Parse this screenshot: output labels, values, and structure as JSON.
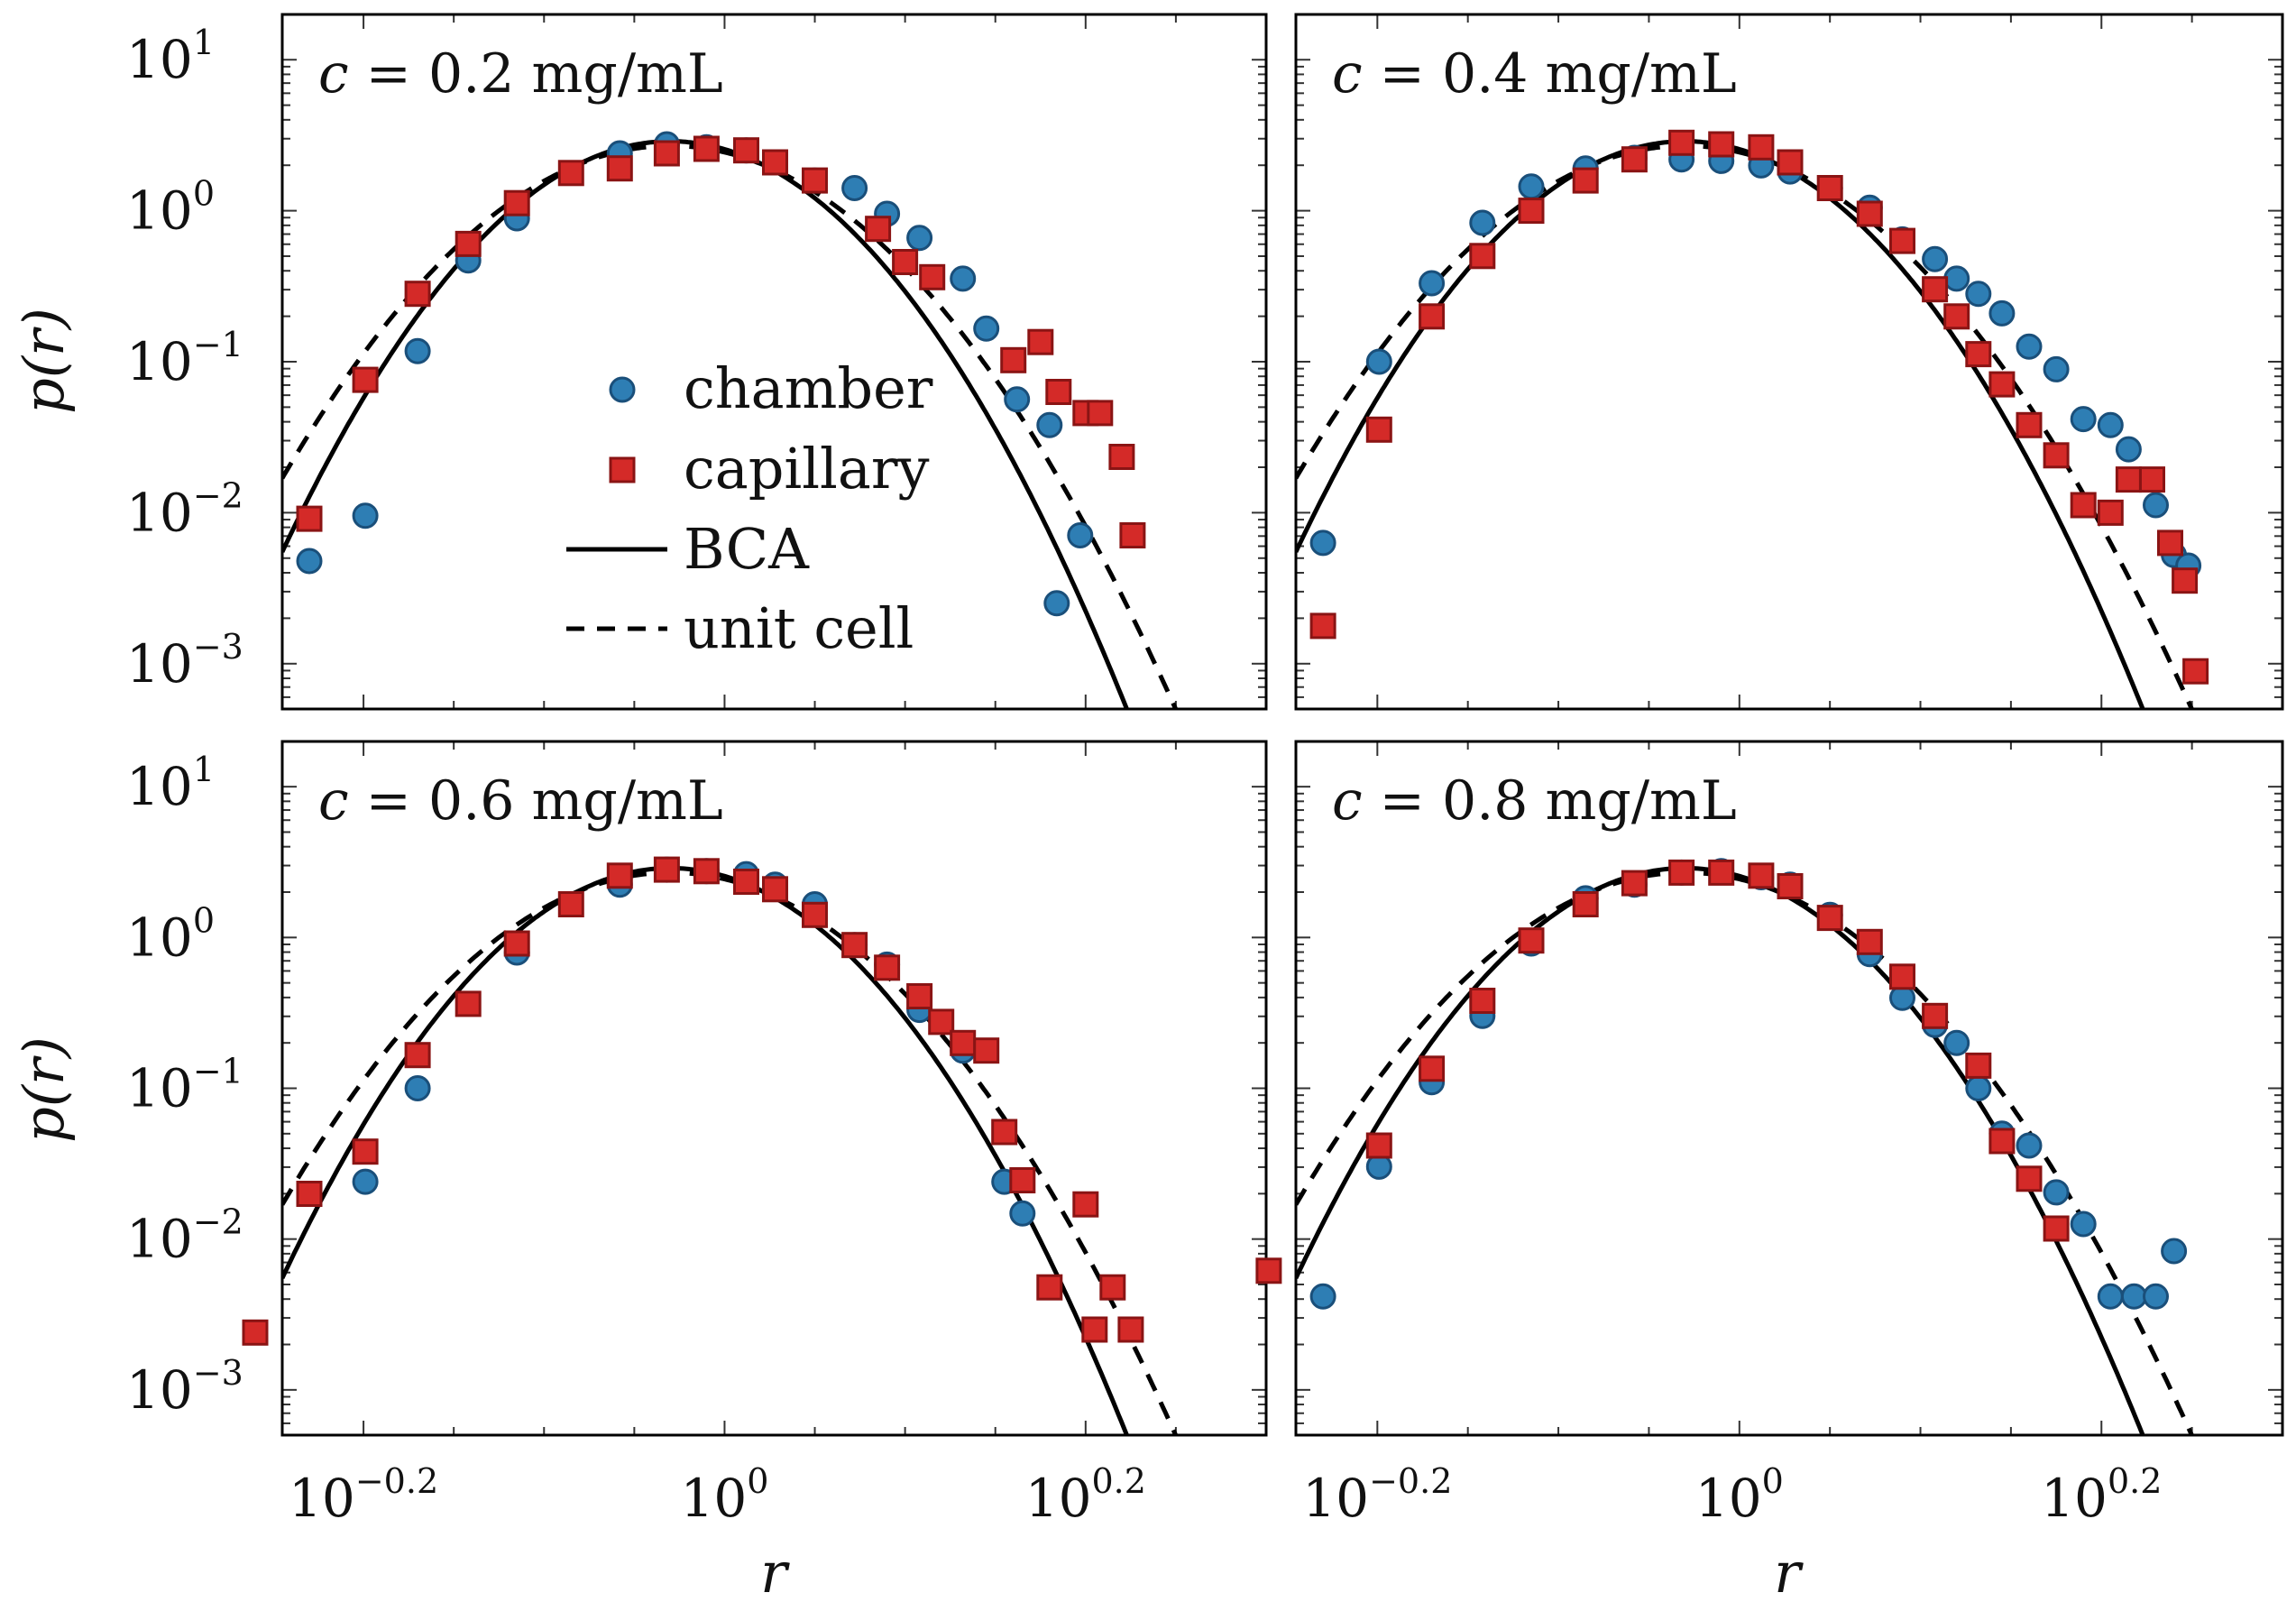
{
  "figure": {
    "x_axis_label": "r",
    "y_axis_label": "p(r)",
    "legend": [
      {
        "label": "chamber",
        "marker": "circle"
      },
      {
        "label": "capillary",
        "marker": "square"
      },
      {
        "label": "BCA",
        "marker": "solid-line"
      },
      {
        "label": "unit cell",
        "marker": "dashed-line"
      }
    ],
    "x_tick_labels": [
      {
        "value": -0.2,
        "base": "10",
        "exp": "−0.2"
      },
      {
        "value": 0,
        "base": "10",
        "exp": "0"
      },
      {
        "value": 0.2,
        "base": "10",
        "exp": "0.2"
      }
    ],
    "y_tick_labels": [
      {
        "value": 1,
        "base": "10",
        "exp": "1"
      },
      {
        "value": 0,
        "base": "10",
        "exp": "0"
      },
      {
        "value": -1,
        "base": "10",
        "exp": "−1"
      },
      {
        "value": -2,
        "base": "10",
        "exp": "−2"
      },
      {
        "value": -3,
        "base": "10",
        "exp": "−3"
      }
    ],
    "colors": {
      "chamber": "#2e7eb4",
      "chamber_edge": "#1a4f7a",
      "capillary": "#d42a28",
      "capillary_edge": "#8a1414",
      "curve": "#000000"
    }
  },
  "chart_data": [
    {
      "type": "scatter",
      "title": "c = 0.2 mg/mL",
      "title_c": "c",
      "title_rest": " = 0.2 mg/mL",
      "xlabel": "r",
      "ylabel": "p(r)",
      "xscale": "log",
      "yscale": "log",
      "xlim_log10": [
        -0.245,
        0.3
      ],
      "ylim_log10": [
        -3.3,
        1.3
      ],
      "series": [
        {
          "name": "chamber",
          "points": [
            [
              -0.23,
              -2.32
            ],
            [
              -0.199,
              -2.02
            ],
            [
              -0.17,
              -0.93
            ],
            [
              -0.142,
              -0.33
            ],
            [
              -0.115,
              -0.05
            ],
            [
              -0.058,
              0.38
            ],
            [
              -0.032,
              0.44
            ],
            [
              -0.01,
              0.42
            ],
            [
              0.012,
              0.4
            ],
            [
              0.05,
              0.2
            ],
            [
              0.072,
              0.15
            ],
            [
              0.09,
              -0.02
            ],
            [
              0.108,
              -0.18
            ],
            [
              0.132,
              -0.45
            ],
            [
              0.145,
              -0.78
            ],
            [
              0.162,
              -1.25
            ],
            [
              0.18,
              -1.42
            ],
            [
              0.184,
              -2.6
            ],
            [
              0.197,
              -2.15
            ]
          ]
        },
        {
          "name": "capillary",
          "points": [
            [
              -0.23,
              -2.04
            ],
            [
              -0.199,
              -1.12
            ],
            [
              -0.17,
              -0.55
            ],
            [
              -0.142,
              -0.22
            ],
            [
              -0.115,
              0.05
            ],
            [
              -0.085,
              0.25
            ],
            [
              -0.058,
              0.28
            ],
            [
              -0.032,
              0.38
            ],
            [
              -0.01,
              0.41
            ],
            [
              0.012,
              0.4
            ],
            [
              0.028,
              0.32
            ],
            [
              0.05,
              0.2
            ],
            [
              0.085,
              -0.12
            ],
            [
              0.1,
              -0.34
            ],
            [
              0.115,
              -0.44
            ],
            [
              0.16,
              -0.99
            ],
            [
              0.175,
              -0.87
            ],
            [
              0.185,
              -1.2
            ],
            [
              0.2,
              -1.34
            ],
            [
              0.208,
              -1.34
            ],
            [
              0.22,
              -1.63
            ],
            [
              0.226,
              -2.15
            ]
          ]
        }
      ]
    },
    {
      "type": "scatter",
      "title": "c = 0.4 mg/mL",
      "title_c": "c",
      "title_rest": " = 0.4 mg/mL",
      "xlabel": "r",
      "ylabel": "p(r)",
      "xscale": "log",
      "yscale": "log",
      "xlim_log10": [
        -0.245,
        0.3
      ],
      "ylim_log10": [
        -3.3,
        1.3
      ],
      "series": [
        {
          "name": "chamber",
          "points": [
            [
              -0.23,
              -2.2
            ],
            [
              -0.199,
              -1.0
            ],
            [
              -0.17,
              -0.48
            ],
            [
              -0.142,
              -0.08
            ],
            [
              -0.115,
              0.16
            ],
            [
              -0.085,
              0.28
            ],
            [
              -0.058,
              0.35
            ],
            [
              -0.032,
              0.34
            ],
            [
              -0.01,
              0.33
            ],
            [
              0.012,
              0.3
            ],
            [
              0.028,
              0.26
            ],
            [
              0.05,
              0.15
            ],
            [
              0.072,
              0.02
            ],
            [
              0.09,
              -0.19
            ],
            [
              0.108,
              -0.32
            ],
            [
              0.12,
              -0.45
            ],
            [
              0.132,
              -0.55
            ],
            [
              0.145,
              -0.68
            ],
            [
              0.16,
              -0.9
            ],
            [
              0.175,
              -1.05
            ],
            [
              0.19,
              -1.38
            ],
            [
              0.205,
              -1.42
            ],
            [
              0.215,
              -1.58
            ],
            [
              0.23,
              -1.95
            ],
            [
              0.24,
              -2.28
            ],
            [
              0.248,
              -2.35
            ]
          ]
        },
        {
          "name": "capillary",
          "points": [
            [
              -0.23,
              -2.75
            ],
            [
              -0.199,
              -1.45
            ],
            [
              -0.17,
              -0.7
            ],
            [
              -0.142,
              -0.3
            ],
            [
              -0.115,
              0.0
            ],
            [
              -0.085,
              0.2
            ],
            [
              -0.058,
              0.34
            ],
            [
              -0.032,
              0.45
            ],
            [
              -0.01,
              0.44
            ],
            [
              0.012,
              0.42
            ],
            [
              0.028,
              0.32
            ],
            [
              0.05,
              0.15
            ],
            [
              0.072,
              -0.02
            ],
            [
              0.09,
              -0.2
            ],
            [
              0.108,
              -0.52
            ],
            [
              0.12,
              -0.7
            ],
            [
              0.132,
              -0.95
            ],
            [
              0.145,
              -1.15
            ],
            [
              0.16,
              -1.42
            ],
            [
              0.175,
              -1.62
            ],
            [
              0.19,
              -1.95
            ],
            [
              0.205,
              -2.0
            ],
            [
              0.215,
              -1.78
            ],
            [
              0.228,
              -1.78
            ],
            [
              0.238,
              -2.2
            ],
            [
              0.246,
              -2.45
            ],
            [
              0.252,
              -3.05
            ]
          ]
        }
      ]
    },
    {
      "type": "scatter",
      "title": "c = 0.6 mg/mL",
      "title_c": "c",
      "title_rest": " = 0.6 mg/mL",
      "xlabel": "r",
      "ylabel": "p(r)",
      "xscale": "log",
      "yscale": "log",
      "xlim_log10": [
        -0.245,
        0.3
      ],
      "ylim_log10": [
        -3.3,
        1.3
      ],
      "series": [
        {
          "name": "chamber",
          "points": [
            [
              -0.199,
              -1.62
            ],
            [
              -0.17,
              -1.0
            ],
            [
              -0.115,
              -0.1
            ],
            [
              -0.058,
              0.35
            ],
            [
              -0.032,
              0.45
            ],
            [
              -0.01,
              0.44
            ],
            [
              0.012,
              0.42
            ],
            [
              0.028,
              0.35
            ],
            [
              0.05,
              0.22
            ],
            [
              0.072,
              -0.05
            ],
            [
              0.09,
              -0.18
            ],
            [
              0.108,
              -0.48
            ],
            [
              0.132,
              -0.75
            ],
            [
              0.155,
              -1.62
            ],
            [
              0.165,
              -1.83
            ]
          ]
        },
        {
          "name": "capillary",
          "points": [
            [
              -0.26,
              -2.62
            ],
            [
              -0.23,
              -1.7
            ],
            [
              -0.199,
              -1.42
            ],
            [
              -0.17,
              -0.78
            ],
            [
              -0.142,
              -0.44
            ],
            [
              -0.115,
              -0.04
            ],
            [
              -0.085,
              0.22
            ],
            [
              -0.058,
              0.41
            ],
            [
              -0.032,
              0.45
            ],
            [
              -0.01,
              0.44
            ],
            [
              0.012,
              0.37
            ],
            [
              0.028,
              0.32
            ],
            [
              0.05,
              0.15
            ],
            [
              0.072,
              -0.05
            ],
            [
              0.09,
              -0.2
            ],
            [
              0.108,
              -0.39
            ],
            [
              0.12,
              -0.56
            ],
            [
              0.132,
              -0.7
            ],
            [
              0.145,
              -0.75
            ],
            [
              0.155,
              -1.29
            ],
            [
              0.165,
              -1.61
            ],
            [
              0.18,
              -2.32
            ],
            [
              0.2,
              -1.77
            ],
            [
              0.205,
              -2.6
            ],
            [
              0.215,
              -2.32
            ],
            [
              0.225,
              -2.6
            ]
          ]
        }
      ]
    },
    {
      "type": "scatter",
      "title": "c = 0.8 mg/mL",
      "title_c": "c",
      "title_rest": " = 0.8 mg/mL",
      "xlabel": "r",
      "ylabel": "p(r)",
      "xscale": "log",
      "yscale": "log",
      "xlim_log10": [
        -0.245,
        0.3
      ],
      "ylim_log10": [
        -3.3,
        1.3
      ],
      "series": [
        {
          "name": "chamber",
          "points": [
            [
              -0.23,
              -2.38
            ],
            [
              -0.199,
              -1.52
            ],
            [
              -0.17,
              -0.96
            ],
            [
              -0.142,
              -0.52
            ],
            [
              -0.115,
              -0.04
            ],
            [
              -0.085,
              0.26
            ],
            [
              -0.058,
              0.35
            ],
            [
              -0.032,
              0.43
            ],
            [
              -0.01,
              0.44
            ],
            [
              0.012,
              0.4
            ],
            [
              0.028,
              0.35
            ],
            [
              0.05,
              0.15
            ],
            [
              0.072,
              -0.11
            ],
            [
              0.09,
              -0.4
            ],
            [
              0.108,
              -0.58
            ],
            [
              0.12,
              -0.7
            ],
            [
              0.132,
              -1.0
            ],
            [
              0.145,
              -1.3
            ],
            [
              0.16,
              -1.38
            ],
            [
              0.175,
              -1.69
            ],
            [
              0.19,
              -1.9
            ],
            [
              0.205,
              -2.38
            ],
            [
              0.218,
              -2.38
            ],
            [
              0.23,
              -2.38
            ],
            [
              0.24,
              -2.08
            ]
          ]
        },
        {
          "name": "capillary",
          "points": [
            [
              -0.26,
              -2.21
            ],
            [
              -0.199,
              -1.38
            ],
            [
              -0.17,
              -0.87
            ],
            [
              -0.142,
              -0.42
            ],
            [
              -0.115,
              -0.02
            ],
            [
              -0.085,
              0.22
            ],
            [
              -0.058,
              0.36
            ],
            [
              -0.032,
              0.43
            ],
            [
              -0.01,
              0.43
            ],
            [
              0.012,
              0.41
            ],
            [
              0.028,
              0.34
            ],
            [
              0.05,
              0.13
            ],
            [
              0.072,
              -0.03
            ],
            [
              0.09,
              -0.26
            ],
            [
              0.108,
              -0.52
            ],
            [
              0.132,
              -0.85
            ],
            [
              0.145,
              -1.35
            ],
            [
              0.16,
              -1.6
            ],
            [
              0.175,
              -1.93
            ]
          ]
        }
      ]
    }
  ]
}
